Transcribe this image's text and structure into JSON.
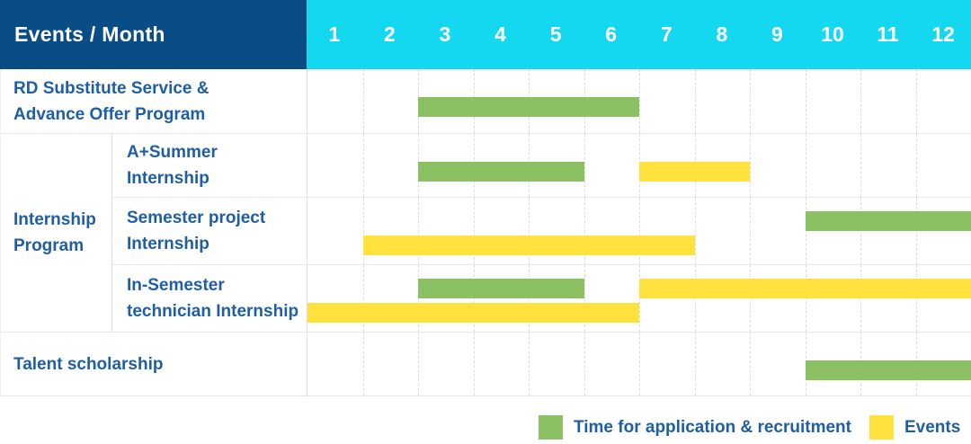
{
  "header": {
    "title": "Events / Month",
    "months": [
      "1",
      "2",
      "3",
      "4",
      "5",
      "6",
      "7",
      "8",
      "9",
      "10",
      "11",
      "12"
    ]
  },
  "colors": {
    "navy": "#084D86",
    "cyan": "#14D7F0",
    "green": "#8BC162",
    "yellow": "#FFE23E",
    "label_blue": "#1E5EA5",
    "grid_solid": "#E6E6E6",
    "grid_dashed": "#DCDCDC"
  },
  "group": {
    "label_lines": [
      "Internship",
      "Program"
    ]
  },
  "rows": [
    {
      "name": "rd-substitute-service-advance-offer-program",
      "label_lines": [
        "RD Substitute Service &",
        "Advance Offer Program"
      ],
      "indent": false,
      "bars": [
        {
          "type": "recruitment",
          "start": 3,
          "end": 6,
          "line": "mid"
        }
      ]
    },
    {
      "name": "a-plus-summer-internship",
      "label_lines": [
        "A+Summer",
        "Internship"
      ],
      "indent": true,
      "bars": [
        {
          "type": "recruitment",
          "start": 3,
          "end": 5,
          "line": "mid"
        },
        {
          "type": "event",
          "start": 7,
          "end": 8,
          "line": "mid"
        }
      ]
    },
    {
      "name": "semester-project-internship",
      "label_lines": [
        "Semester project",
        "Internship"
      ],
      "indent": true,
      "bars": [
        {
          "type": "recruitment",
          "start": 10,
          "end": 12,
          "line": "upper"
        },
        {
          "type": "event",
          "start": 2,
          "end": 7,
          "line": "lower"
        }
      ]
    },
    {
      "name": "in-semester-technician-internship",
      "label_lines": [
        "In-Semester",
        "technician Internship"
      ],
      "indent": true,
      "bars": [
        {
          "type": "recruitment",
          "start": 3,
          "end": 5,
          "line": "upper"
        },
        {
          "type": "event",
          "start": 7,
          "end": 12,
          "line": "upper"
        },
        {
          "type": "event",
          "start": 1,
          "end": 6,
          "line": "lower"
        }
      ]
    },
    {
      "name": "talent-scholarship",
      "label_lines": [
        "Talent scholarship"
      ],
      "indent": false,
      "bars": [
        {
          "type": "recruitment",
          "start": 10,
          "end": 12,
          "line": "mid"
        }
      ]
    }
  ],
  "legend": {
    "items": [
      {
        "swatch": "recruitment",
        "label": "Time for application & recruitment"
      },
      {
        "swatch": "event",
        "label": "Events"
      }
    ]
  },
  "chart_data": {
    "type": "table",
    "subtype": "gantt",
    "title": "Events / Month",
    "x_axis": {
      "label": "Month",
      "ticks": [
        1,
        2,
        3,
        4,
        5,
        6,
        7,
        8,
        9,
        10,
        11,
        12
      ],
      "range": [
        1,
        12
      ]
    },
    "grid": "dashed-vertical-month-lines",
    "legend_position": "bottom-right",
    "legend": {
      "green": "Time for application & recruitment",
      "yellow": "Events"
    },
    "tasks": [
      {
        "name": "RD Substitute Service & Advance Offer Program",
        "group": null,
        "recruitment_month_ranges": [
          [
            3,
            6
          ]
        ],
        "event_month_ranges": []
      },
      {
        "name": "A+Summer Internship",
        "group": "Internship Program",
        "recruitment_month_ranges": [
          [
            3,
            5
          ]
        ],
        "event_month_ranges": [
          [
            7,
            8
          ]
        ]
      },
      {
        "name": "Semester project Internship",
        "group": "Internship Program",
        "recruitment_month_ranges": [
          [
            10,
            12
          ]
        ],
        "event_month_ranges": [
          [
            2,
            7
          ]
        ]
      },
      {
        "name": "In-Semester technician Internship",
        "group": "Internship Program",
        "recruitment_month_ranges": [
          [
            3,
            5
          ]
        ],
        "event_month_ranges": [
          [
            7,
            12
          ],
          [
            1,
            6
          ]
        ]
      },
      {
        "name": "Talent scholarship",
        "group": null,
        "recruitment_month_ranges": [
          [
            10,
            12
          ]
        ],
        "event_month_ranges": []
      }
    ]
  }
}
